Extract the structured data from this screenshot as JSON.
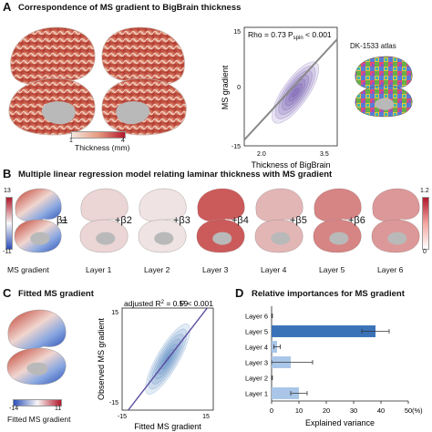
{
  "panel_a": {
    "letter": "A",
    "title": "Correspondence of MS gradient to BigBrain thickness",
    "cbar_label": "Thickness (mm)",
    "cbar_min": "1",
    "cbar_max": "4",
    "atlas_label": "DK-1533 atlas",
    "colors": {
      "cbar_low": "#f5e6de",
      "cbar_high": "#b2182b",
      "kde": "#4b2e9a",
      "fit_line": "#888888"
    }
  },
  "panel_b": {
    "letter": "B",
    "title": "Multiple linear regression model relating laminar thickness with MS gradient",
    "left_cbar_max": "13",
    "left_cbar_min": "-11",
    "right_cbar_max": "1.2",
    "right_cbar_min": "0",
    "ms_label": "MS gradient",
    "equals": "=",
    "coefficients": [
      "β1",
      "+β2",
      "+β3",
      "+β4",
      "+β5",
      "+β6"
    ],
    "layers": [
      "Layer 1",
      "Layer 2",
      "Layer 3",
      "Layer 4",
      "Layer 5",
      "Layer 6"
    ]
  },
  "panel_c": {
    "letter": "C",
    "title": "Fitted MS gradient",
    "cbar_min": "-14",
    "cbar_max": "11",
    "cbar_label": "Fitted MS gradient"
  },
  "panel_d": {
    "letter": "D",
    "title": "Relative importances for MS gradient"
  },
  "chart_data": [
    {
      "type": "scatter",
      "title": "",
      "xlabel": "Thickness of BigBrain",
      "ylabel": "MS gradient",
      "xlim": [
        1.75,
        3.75
      ],
      "ylim": [
        -15,
        15
      ],
      "x_ticks": [
        "2.0",
        "3.5"
      ],
      "y_ticks": [
        "15",
        "0",
        "-15"
      ],
      "annotation_rho": "Rho = 0.73",
      "annotation_p_prefix": "P",
      "annotation_p_sub": "spin",
      "annotation_p_value": " < 0.001",
      "fit_line": [
        [
          1.75,
          -13.5
        ],
        [
          3.75,
          12.0
        ]
      ],
      "density_center": [
        2.85,
        -1.5
      ]
    },
    {
      "type": "scatter",
      "title": "",
      "xlabel": "Fitted MS gradient",
      "ylabel": "Observed MS gradient",
      "xlim": [
        -15,
        15
      ],
      "ylim": [
        -15,
        15
      ],
      "x_ticks": [
        "-15",
        "15"
      ],
      "y_ticks": [
        "15",
        "-15"
      ],
      "annotation_r2_prefix": "adjusted R",
      "annotation_r2_sup": "2",
      "annotation_r2_value": " = 0.59",
      "annotation_p": "P < 0.001",
      "fit_line": [
        [
          -13,
          -15
        ],
        [
          13,
          15
        ]
      ],
      "density_center": [
        0,
        0
      ]
    },
    {
      "type": "bar",
      "title": "",
      "xlabel": "Explained variance",
      "ylabel": "",
      "categories": [
        "Layer 1",
        "Layer 2",
        "Layer 3",
        "Layer 4",
        "Layer 5",
        "Layer 6"
      ],
      "values": [
        10,
        0,
        7,
        2,
        38,
        0
      ],
      "errors": [
        3,
        0.3,
        8,
        1.2,
        5,
        0.3
      ],
      "xlim": [
        0,
        50
      ],
      "x_ticks": [
        "0",
        "10",
        "20",
        "30",
        "40",
        "50"
      ],
      "x_unit": "(%)",
      "highlight": "Layer 5",
      "colors": {
        "highlight": "#3b73b9",
        "normal": "#a9c6e8",
        "error": "#333333"
      }
    }
  ]
}
